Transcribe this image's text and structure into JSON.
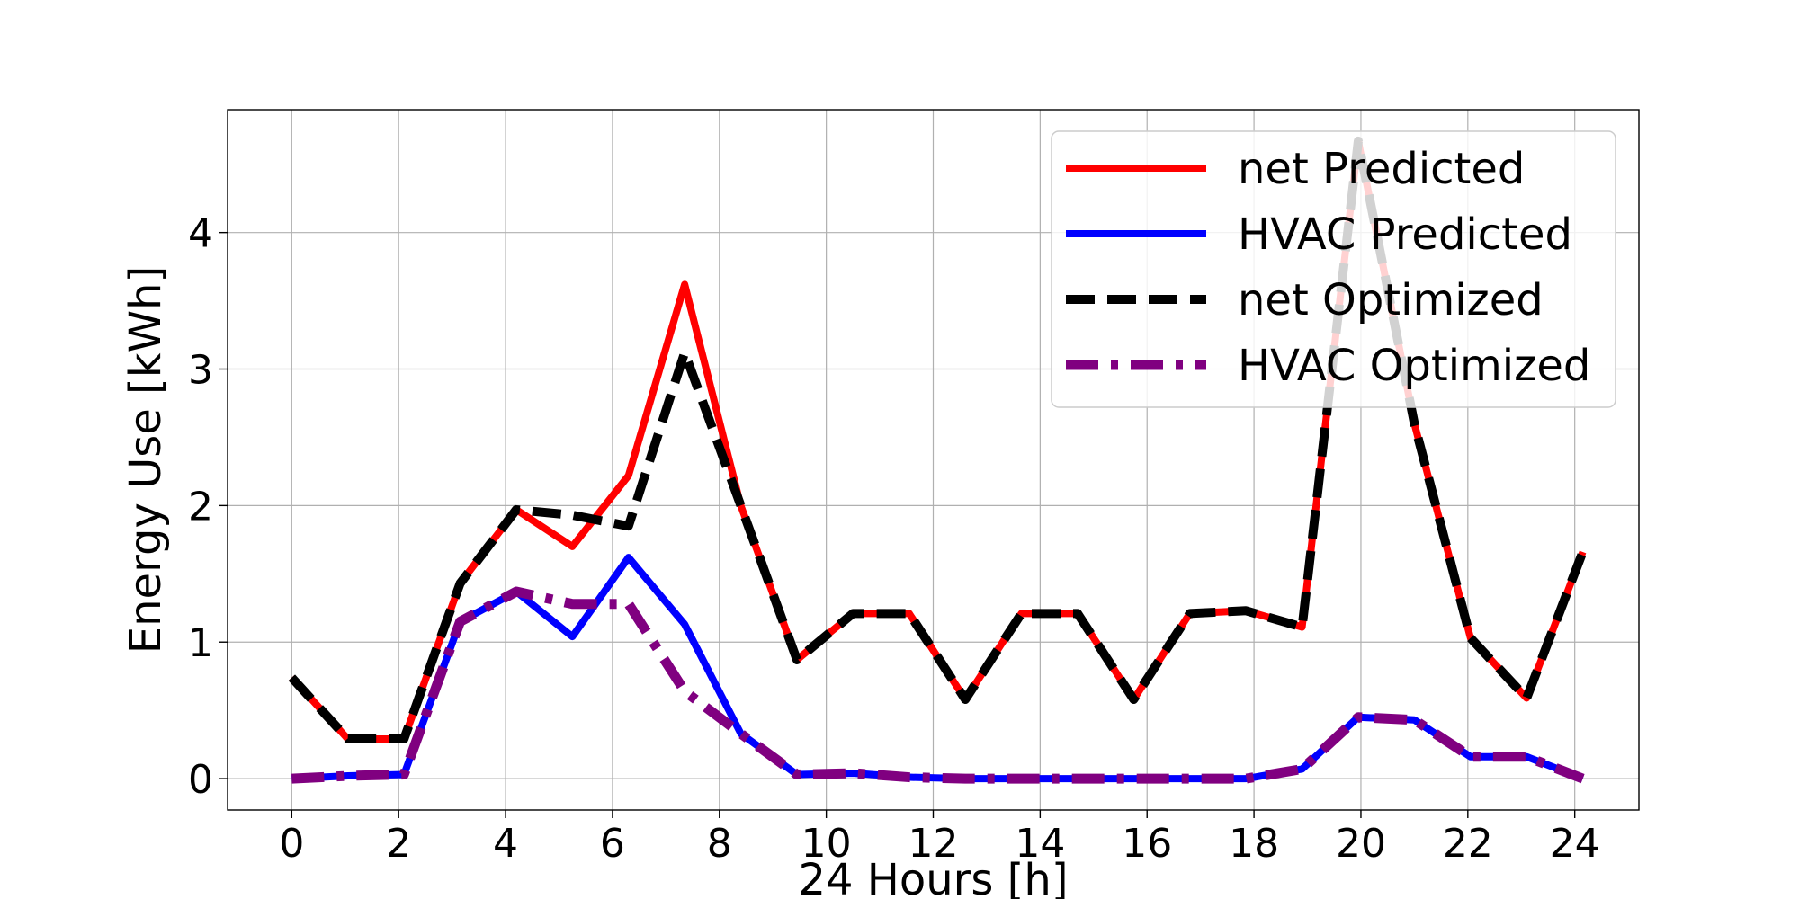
{
  "chart_data": {
    "type": "line",
    "title": "",
    "xlabel": "24 Hours [h]",
    "ylabel": "Energy Use [kWh]",
    "xlim": [
      -1.2,
      25.2
    ],
    "ylim": [
      -0.23,
      4.9
    ],
    "xticks": [
      0,
      2,
      4,
      6,
      8,
      10,
      12,
      14,
      16,
      18,
      20,
      22,
      24
    ],
    "yticks": [
      0,
      1,
      2,
      3,
      4
    ],
    "grid": true,
    "legend_position": "top-right",
    "x": [
      0,
      1.05,
      2.1,
      3.15,
      4.2,
      5.25,
      6.3,
      7.35,
      8.4,
      9.45,
      10.5,
      11.55,
      12.6,
      13.65,
      14.7,
      15.75,
      16.8,
      17.85,
      18.9,
      19.95,
      21.0,
      22.05,
      23.1,
      24.15
    ],
    "series": [
      {
        "name": "net Predicted",
        "color": "#ff0000",
        "style": "solid",
        "values": [
          0.74,
          0.29,
          0.29,
          1.43,
          1.97,
          1.7,
          2.22,
          3.62,
          2.0,
          0.87,
          1.21,
          1.21,
          0.58,
          1.21,
          1.21,
          0.58,
          1.21,
          1.23,
          1.11,
          4.67,
          2.6,
          1.03,
          0.59,
          1.66
        ]
      },
      {
        "name": "HVAC Predicted",
        "color": "#0000ff",
        "style": "solid",
        "values": [
          0.0,
          0.02,
          0.03,
          1.15,
          1.37,
          1.04,
          1.62,
          1.13,
          0.33,
          0.03,
          0.04,
          0.01,
          0.0,
          0.0,
          0.0,
          0.0,
          0.0,
          0.0,
          0.07,
          0.45,
          0.43,
          0.16,
          0.16,
          0.0
        ]
      },
      {
        "name": "net Optimized",
        "color": "#000000",
        "style": "dashed",
        "values": [
          0.74,
          0.29,
          0.29,
          1.43,
          1.97,
          1.93,
          1.85,
          3.12,
          2.0,
          0.87,
          1.21,
          1.21,
          0.58,
          1.21,
          1.21,
          0.58,
          1.21,
          1.23,
          1.11,
          4.67,
          2.6,
          1.03,
          0.59,
          1.66
        ]
      },
      {
        "name": "HVAC Optimized",
        "color": "#800080",
        "style": "dashdot",
        "values": [
          0.0,
          0.02,
          0.03,
          1.15,
          1.37,
          1.28,
          1.28,
          0.64,
          0.33,
          0.03,
          0.04,
          0.01,
          0.0,
          0.0,
          0.0,
          0.0,
          0.0,
          0.0,
          0.07,
          0.45,
          0.43,
          0.16,
          0.16,
          0.0
        ]
      }
    ]
  }
}
